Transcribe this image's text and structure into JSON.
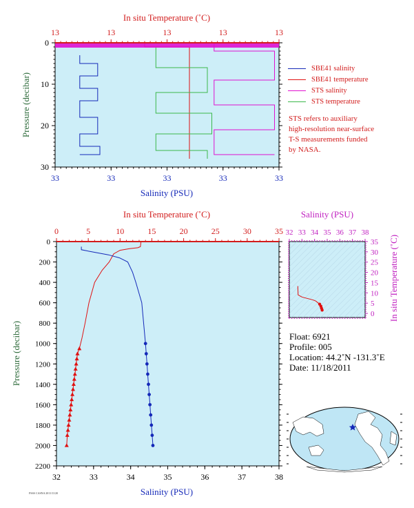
{
  "colors": {
    "plot_bg": "#cdeef8",
    "temperature": "#e01010",
    "salinity": "#1428b8",
    "sts_salinity": "#e010d0",
    "sts_temperature": "#3ab84a",
    "hires_temp_line": "#f08a8a",
    "axis_red": "#d21c1c",
    "axis_blue": "#1428b8",
    "axis_magenta": "#c020c0",
    "axis_green": "#2e6b3b"
  },
  "legend": {
    "items": [
      {
        "label": "SBE41 salinity",
        "color": "#1428b8"
      },
      {
        "label": "SBE41 temperature",
        "color": "#e01010"
      },
      {
        "label": "STS salinity",
        "color": "#e010d0"
      },
      {
        "label": "STS temperature",
        "color": "#3ab84a"
      }
    ]
  },
  "note": {
    "lines": [
      "STS refers to auxiliary",
      "high-resolution near-surface",
      "T-S measurements funded",
      "by NASA."
    ]
  },
  "float_info": {
    "float": "Float:  6921",
    "profile": "Profile:  005",
    "location": "Location:  44.2˚N  -131.3˚E",
    "date": "Date:  11/18/2011"
  },
  "credit": "FSSS CASNA 2011/11/20",
  "chart_data": [
    {
      "id": "near-surface-profile",
      "type": "line",
      "top_axis_title": "In situ Temperature (˚C)",
      "top_tick_labels": [
        "13",
        "13",
        "13",
        "13",
        "13"
      ],
      "bottom_axis_title": "Salinity (PSU)",
      "bottom_tick_labels": [
        "33",
        "33",
        "33",
        "33",
        "33"
      ],
      "ylabel": "Pressure (decibar)",
      "ylim": [
        0,
        30
      ],
      "yticks": [
        0,
        10,
        20,
        30
      ],
      "series": [
        {
          "name": "SBE41 salinity",
          "color": "#1428b8",
          "x_frac": [
            0.11,
            0.11,
            0.19,
            0.19,
            0.11,
            0.11,
            0.19,
            0.19,
            0.11,
            0.11,
            0.19,
            0.19,
            0.11,
            0.11,
            0.2,
            0.2,
            0.11
          ],
          "pressure": [
            3,
            5,
            5,
            8,
            8,
            11,
            11,
            14,
            14,
            18,
            18,
            22,
            22,
            25,
            25,
            27,
            27
          ]
        },
        {
          "name": "SBE41 temperature",
          "color": "#e01010",
          "x_frac": [
            0.4,
            0.4,
            0.6,
            0.6
          ],
          "pressure": [
            0,
            1,
            1,
            28
          ]
        },
        {
          "name": "STS salinity",
          "color": "#e010d0",
          "x_frac": [
            0.71,
            0.71,
            0.98,
            0.98,
            0.71,
            0.71,
            0.98,
            0.98,
            0.71,
            0.71,
            0.98
          ],
          "pressure": [
            0,
            2,
            2,
            9,
            9,
            15,
            15,
            21,
            21,
            27,
            27
          ]
        },
        {
          "name": "STS temperature",
          "color": "#3ab84a",
          "x_frac": [
            0.45,
            0.45,
            0.68,
            0.68,
            0.45,
            0.45,
            0.7,
            0.7,
            0.45,
            0.45,
            0.68,
            0.68
          ],
          "pressure": [
            1,
            6,
            6,
            12,
            12,
            17,
            17,
            22,
            22,
            26,
            26,
            28
          ]
        }
      ]
    },
    {
      "id": "deep-profile",
      "type": "line",
      "top_axis_title": "In situ Temperature (˚C)",
      "bottom_axis_title": "Salinity (PSU)",
      "ylabel": "Pressure (decibar)",
      "temperature_axis": {
        "range": [
          0,
          35
        ],
        "ticks": [
          0,
          5,
          10,
          15,
          20,
          25,
          30,
          35
        ]
      },
      "salinity_axis": {
        "range": [
          32,
          38
        ],
        "ticks": [
          32,
          33,
          34,
          35,
          36,
          37,
          38
        ]
      },
      "ylim": [
        0,
        2200
      ],
      "yticks": [
        0,
        200,
        400,
        600,
        800,
        1000,
        1200,
        1400,
        1600,
        1800,
        2000,
        2200
      ],
      "series": [
        {
          "name": "SBE41 temperature",
          "color": "#e01010",
          "x": [
            13.3,
            13.2,
            12.8,
            11.5,
            10.0,
            9.0,
            8.3,
            7.2,
            6.0,
            5.1,
            4.5,
            4.0,
            3.6,
            3.3,
            3.2,
            3.1,
            3.0,
            2.9,
            2.8,
            2.7,
            2.6,
            2.5,
            2.4,
            2.3,
            2.2,
            2.1,
            2.0,
            1.9,
            1.8,
            1.7,
            1.6
          ],
          "pressure": [
            0,
            50,
            60,
            70,
            85,
            120,
            200,
            280,
            400,
            600,
            800,
            950,
            1050,
            1100,
            1150,
            1200,
            1250,
            1300,
            1350,
            1400,
            1450,
            1500,
            1550,
            1600,
            1650,
            1700,
            1750,
            1800,
            1850,
            1900,
            2000
          ]
        },
        {
          "name": "SBE41 salinity",
          "color": "#1428b8",
          "x": [
            32.67,
            32.67,
            32.95,
            33.4,
            33.7,
            33.92,
            34.05,
            34.14,
            34.22,
            34.3,
            34.35,
            34.4,
            34.42,
            34.44,
            34.46,
            34.48,
            34.5,
            34.52,
            34.54,
            34.56,
            34.58,
            34.6
          ],
          "pressure": [
            50,
            80,
            100,
            130,
            160,
            200,
            300,
            400,
            500,
            600,
            800,
            1000,
            1100,
            1200,
            1300,
            1400,
            1500,
            1600,
            1700,
            1800,
            1900,
            2000
          ]
        }
      ]
    },
    {
      "id": "ts-diagram",
      "type": "line",
      "top_axis_title": "Salinity (PSU)",
      "xticks": [
        32,
        33,
        34,
        35,
        36,
        37,
        38
      ],
      "right_axis_title": "In situ Temperature (˚C)",
      "yticks": [
        0,
        5,
        10,
        15,
        20,
        25,
        30,
        35
      ],
      "xlim": [
        32,
        38
      ],
      "ylim": [
        -2,
        35
      ],
      "series": [
        {
          "name": "T-S",
          "color": "#e01010",
          "x": [
            32.67,
            32.7,
            33.0,
            33.3,
            33.6,
            33.9,
            34.1,
            34.3,
            34.4,
            34.5,
            34.55,
            34.6
          ],
          "y": [
            13.3,
            9.0,
            8.0,
            7.5,
            7.0,
            6.5,
            6.0,
            5.0,
            4.5,
            3.5,
            2.5,
            1.6
          ]
        }
      ]
    }
  ]
}
